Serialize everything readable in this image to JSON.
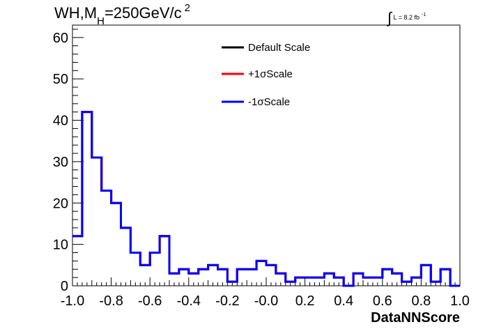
{
  "title": {
    "prefix": "WH,M",
    "subscript": "H",
    "mid": "=250GeV/c",
    "superscript": "2"
  },
  "lumi": {
    "integral": "∫",
    "text": "L = 8.2 fb",
    "superscript": "-1"
  },
  "chart_data": {
    "type": "step-histogram",
    "xlabel": "DataNNScore",
    "ylabel": "",
    "xlim": [
      -1.0,
      1.0
    ],
    "ylim": [
      0,
      63
    ],
    "x_ticks": [
      -1.0,
      -0.8,
      -0.6,
      -0.4,
      -0.2,
      0.0,
      0.2,
      0.4,
      0.6,
      0.8,
      1.0
    ],
    "x_tick_labels": [
      "-1.0",
      "-0.8",
      "-0.6",
      "-0.4",
      "-0.2",
      "-0.0",
      "0.2",
      "0.4",
      "0.6",
      "0.8",
      "1.0"
    ],
    "y_ticks": [
      0,
      10,
      20,
      30,
      40,
      50,
      60
    ],
    "y_tick_labels": [
      "0",
      "10",
      "20",
      "30",
      "40",
      "50",
      "60"
    ],
    "bin_edges_start": -1.0,
    "bin_width": 0.05,
    "legend_position": "top-center",
    "series": [
      {
        "name": "Default Scale",
        "color": "#000000",
        "values": [
          12,
          42,
          31,
          23,
          20,
          14,
          8,
          5,
          8,
          12,
          3,
          4,
          3,
          4,
          5,
          4,
          1,
          4,
          4,
          6,
          5,
          3,
          1,
          2,
          2,
          2,
          3,
          2,
          0,
          3,
          2,
          2,
          4,
          3,
          1,
          2,
          5,
          1,
          4,
          0
        ]
      },
      {
        "name": "+1σScale",
        "color": "#ff0000",
        "values": [
          12,
          42,
          31,
          23,
          20,
          14,
          8,
          5,
          8,
          12,
          3,
          4,
          3,
          4,
          5,
          4,
          1,
          4,
          4,
          6,
          5,
          3,
          1,
          2,
          2,
          2,
          3,
          2,
          0,
          3,
          2,
          2,
          4,
          3,
          1,
          2,
          5,
          1,
          4,
          0
        ]
      },
      {
        "name": "-1σScale",
        "color": "#0000ff",
        "values": [
          12,
          42,
          31,
          23,
          20,
          14,
          8,
          5,
          8,
          12,
          3,
          4,
          3,
          4,
          5,
          4,
          1,
          4,
          4,
          6,
          5,
          3,
          1,
          2,
          2,
          2,
          3,
          2,
          0,
          3,
          2,
          2,
          4,
          3,
          1,
          2,
          5,
          1,
          4,
          0
        ]
      }
    ]
  }
}
